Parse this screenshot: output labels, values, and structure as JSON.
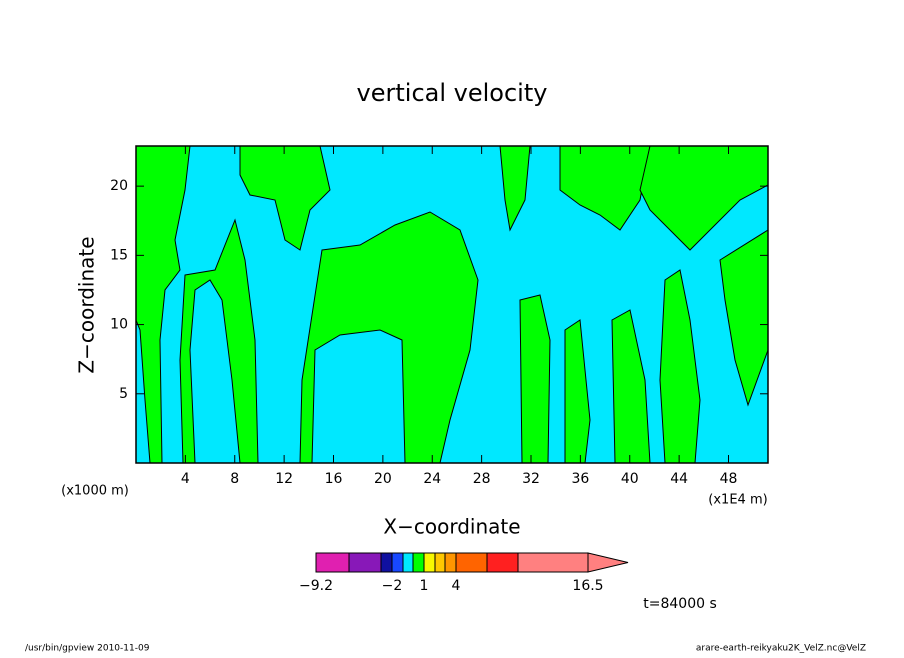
{
  "chart_data": {
    "type": "contour",
    "title": "vertical velocity",
    "x_label": "X−coordinate",
    "y_label": "Z−coordinate",
    "x_unit": "(x1000 m)",
    "x_scale": "(x1E4 m)",
    "xlim": [
      0,
      51.2
    ],
    "ylim": [
      0,
      22.9
    ],
    "xticks": [
      4,
      8,
      12,
      16,
      20,
      24,
      28,
      32,
      36,
      40,
      44,
      48
    ],
    "yticks": [
      5,
      10,
      15,
      20
    ],
    "colorbar": {
      "colors": [
        "#e020b0",
        "#8818b8",
        "#1010a0",
        "#1848ff",
        "#00e8ff",
        "#00ff00",
        "#f8f800",
        "#ffc800",
        "#ff9600",
        "#ff6400",
        "#ff2020",
        "#ff8080"
      ],
      "labels": [
        "−9.2",
        "−2",
        "1",
        "4",
        "16.5"
      ]
    },
    "time_label": "t=84000 s",
    "footer_left": "/usr/bin/gpview   2010-11-09",
    "footer_right": "arare-earth-reikyaku2K_VelZ.nc@VelZ"
  }
}
